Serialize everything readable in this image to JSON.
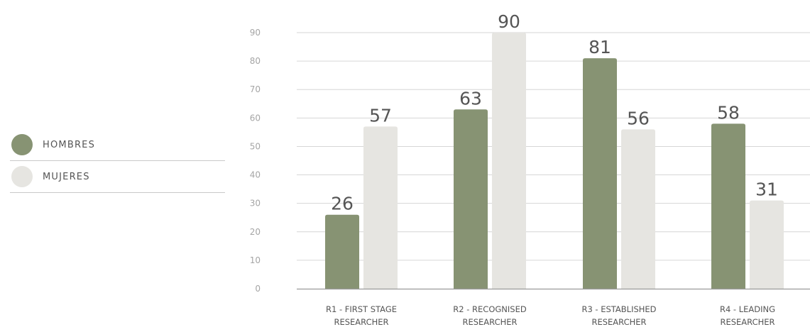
{
  "chart_data": {
    "type": "bar",
    "categories": [
      [
        "R1 - FIRST STAGE",
        "RESEARCHER"
      ],
      [
        "R2 - RECOGNISED",
        "RESEARCHER"
      ],
      [
        "R3 - ESTABLISHED",
        "RESEARCHER"
      ],
      [
        "R4 - LEADING",
        "RESEARCHER"
      ]
    ],
    "series": [
      {
        "name": "HOMBRES",
        "color": "#879373",
        "values": [
          26,
          63,
          81,
          58
        ]
      },
      {
        "name": "MUJERES",
        "color": "#e6e5e1",
        "values": [
          57,
          90,
          56,
          31
        ]
      }
    ],
    "ylim": [
      0,
      90
    ],
    "yticks": [
      0,
      10,
      20,
      30,
      40,
      50,
      60,
      70,
      80,
      90
    ],
    "grid": true,
    "legend_position": "left"
  }
}
